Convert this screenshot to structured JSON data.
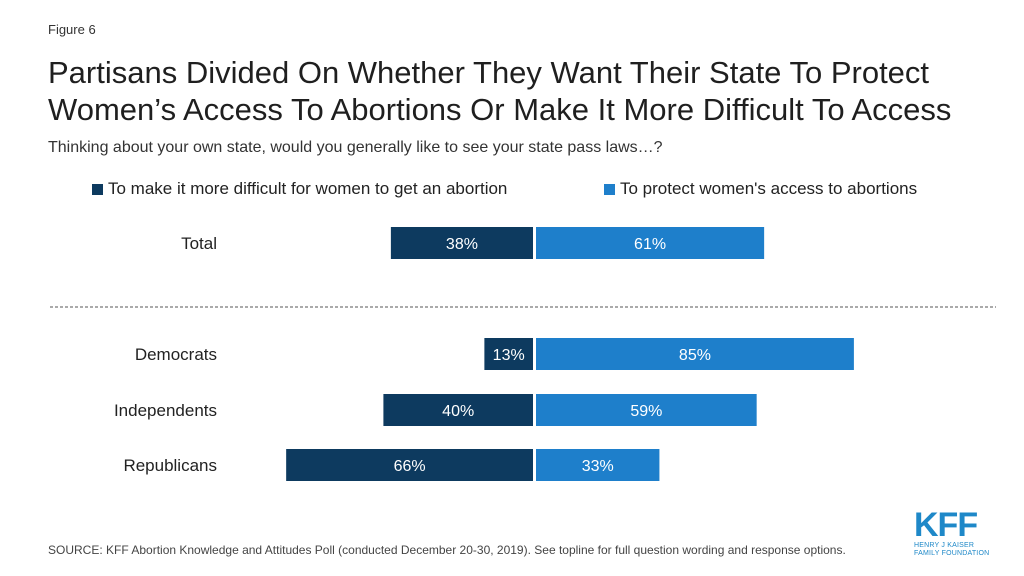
{
  "figure_label": "Figure 6",
  "title": "Partisans Divided On Whether They Want Their State To Protect Women’s Access To Abortions Or Make It More Difficult To Access",
  "subtitle": "Thinking about your own state, would you generally like to see your state pass laws…?",
  "source": "SOURCE: KFF Abortion Knowledge and Attitudes Poll (conducted December 20-30, 2019). See topline for full question wording and response options.",
  "logo": {
    "name": "KFF",
    "line1": "HENRY J KAISER",
    "line2": "FAMILY FOUNDATION"
  },
  "colors": {
    "difficult": "#0d3a5f",
    "protect": "#1e7fcb"
  },
  "chart_data": {
    "type": "bar",
    "orientation": "horizontal-diverging",
    "categories": [
      "Total",
      "Democrats",
      "Independents",
      "Republicans"
    ],
    "series": [
      {
        "name": "To make it more difficult for women to get an abortion",
        "values": [
          38,
          13,
          40,
          66
        ],
        "color": "#0d3a5f"
      },
      {
        "name": "To protect women's access to abortions",
        "values": [
          61,
          85,
          59,
          33
        ],
        "color": "#1e7fcb"
      }
    ],
    "value_suffix": "%",
    "legend_position": "top",
    "separator_after": "Total"
  }
}
